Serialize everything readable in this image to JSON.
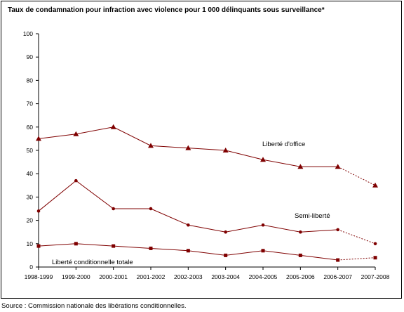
{
  "chart_data": {
    "type": "line",
    "title": "Taux de condamnation pour infraction avec violence pour 1 000 délinquants sous surveillance*",
    "xlabel": "",
    "ylabel": "",
    "ylim": [
      0,
      100
    ],
    "yticks": [
      0,
      10,
      20,
      30,
      40,
      50,
      60,
      70,
      80,
      90,
      100
    ],
    "grid": false,
    "categories": [
      "1998-1999",
      "1999-2000",
      "2000-2001",
      "2001-2002",
      "2002-2003",
      "2003-2004",
      "2004-2005",
      "2005-2006",
      "2006-2007",
      "2007-2008"
    ],
    "series": [
      {
        "name": "Liberté d'office",
        "marker": "triangle",
        "values": [
          55,
          57,
          60,
          52,
          51,
          50,
          46,
          43,
          43,
          35
        ],
        "dashed_last_segment": true,
        "color": "#7f0000"
      },
      {
        "name": "Semi-liberté",
        "marker": "circle",
        "values": [
          24,
          37,
          25,
          25,
          18,
          15,
          18,
          15,
          16,
          10
        ],
        "dashed_last_segment": true,
        "color": "#7f0000"
      },
      {
        "name": "Liberté conditionnelle totale",
        "marker": "square",
        "values": [
          9,
          10,
          9,
          8,
          7,
          5,
          7,
          5,
          3,
          4
        ],
        "dashed_last_segment": true,
        "color": "#7f0000"
      }
    ]
  },
  "source_note": "Source : Commission nationale des libérations conditionnelles."
}
